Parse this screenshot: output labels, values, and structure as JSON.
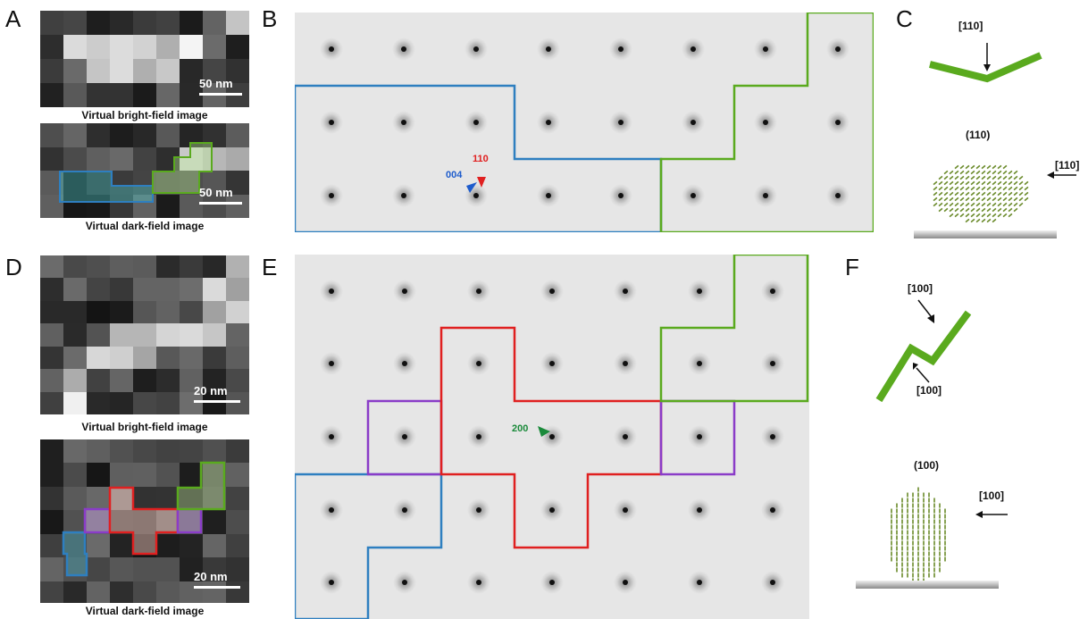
{
  "panel_labels": [
    "A",
    "B",
    "C",
    "D",
    "E",
    "F"
  ],
  "panel_A": {
    "bright_caption": "Virtual bright-field image",
    "dark_caption": "Virtual dark-field image",
    "scale_top": "50 nm",
    "scale_bottom": "50 nm"
  },
  "panel_B": {
    "label_004": "004",
    "label_110": "110",
    "colors": {
      "blue": "#2e7fc0",
      "green": "#5aaa1e",
      "red": "#e02020"
    }
  },
  "panel_C": {
    "top_dir": "[110]",
    "plane": "(110)",
    "side_dir": "[110]"
  },
  "panel_D": {
    "bright_caption": "Virtual bright-field image",
    "dark_caption": "Virtual dark-field image",
    "scale_top": "20 nm",
    "scale_bottom": "20 nm"
  },
  "panel_E": {
    "label_200": "200",
    "colors": {
      "blue": "#2e7fc0",
      "green": "#5aaa1e",
      "red": "#e02020",
      "purple": "#8a3cc8"
    }
  },
  "panel_F": {
    "dir_top": "[100]",
    "dir_bottom": "[100]",
    "plane": "(100)",
    "side_dir": "[100]"
  }
}
